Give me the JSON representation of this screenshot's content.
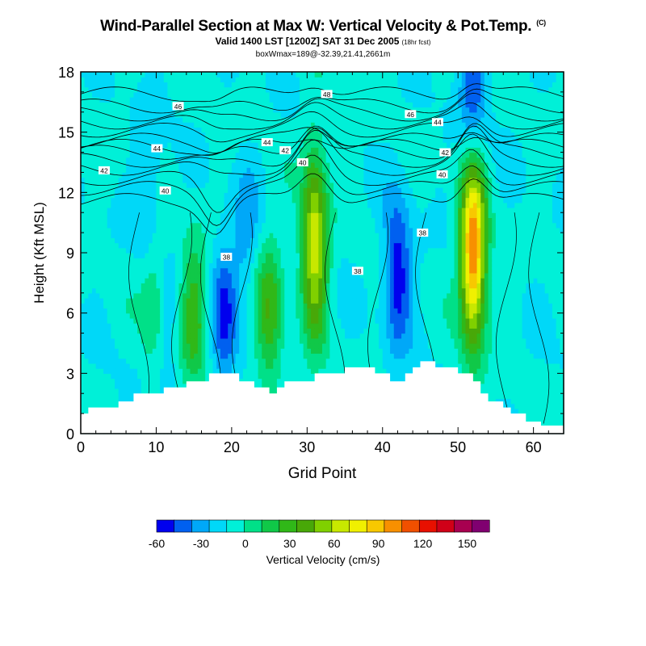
{
  "chart_data": {
    "type": "heatmap",
    "title": "Wind-Parallel Section at Max W: Vertical Velocity & Pot.Temp.",
    "title_tag": "(C)",
    "subtitle": "Valid 1400 LST [1200Z] SAT 31 Dec 2005",
    "forecast_tag": "(18hr fcst)",
    "box_info": "boxWmax=189@-32.39,21.41,2661m",
    "xlabel": "Grid Point",
    "ylabel": "Height (Kft MSL)",
    "xlim": [
      0,
      64
    ],
    "ylim": [
      0,
      18
    ],
    "x_ticks": [
      0,
      10,
      20,
      30,
      40,
      50,
      60
    ],
    "y_ticks": [
      0,
      3,
      6,
      9,
      12,
      15,
      18
    ],
    "colorbar": {
      "label": "Vertical Velocity (cm/s)",
      "tick_labels": [
        "-60",
        "-30",
        "0",
        "30",
        "60",
        "90",
        "120",
        "150"
      ],
      "tick_values": [
        -60,
        -30,
        0,
        30,
        60,
        90,
        120,
        150
      ],
      "range": [
        -60,
        165
      ],
      "step": 15,
      "colors": [
        "#0000ee",
        "#0060f0",
        "#00a8f8",
        "#00d8f8",
        "#00f0d8",
        "#00e088",
        "#10c848",
        "#30b818",
        "#48a808",
        "#80d000",
        "#c8e800",
        "#f0f000",
        "#f8c800",
        "#f89000",
        "#f05000",
        "#e81000",
        "#d00018",
        "#a80050",
        "#800070"
      ]
    },
    "terrain_height_kft": [
      1.0,
      1.3,
      1.3,
      1.3,
      1.3,
      1.6,
      1.6,
      2.0,
      2.0,
      2.0,
      2.0,
      2.3,
      2.3,
      2.3,
      2.6,
      2.6,
      2.6,
      3.0,
      3.0,
      3.0,
      3.0,
      2.6,
      2.6,
      2.3,
      2.3,
      2.0,
      2.3,
      2.6,
      2.6,
      2.6,
      2.6,
      3.0,
      3.0,
      3.0,
      3.0,
      3.3,
      3.3,
      3.3,
      3.3,
      3.0,
      3.0,
      2.6,
      2.6,
      3.0,
      3.3,
      3.6,
      3.6,
      3.3,
      3.3,
      3.3,
      3.0,
      3.0,
      2.6,
      2.0,
      1.6,
      1.6,
      1.3,
      1.0,
      1.0,
      0.6,
      0.6,
      0.4,
      0.4,
      0.4,
      0.4
    ],
    "updrafts": [
      {
        "x": 31,
        "z": 9.5,
        "w": 100
      },
      {
        "x": 52,
        "z": 9,
        "w": 150
      },
      {
        "x": 10,
        "z": 6.5,
        "w": 45
      },
      {
        "x": 15,
        "z": 6,
        "w": 50
      },
      {
        "x": 25,
        "z": 6,
        "w": 55
      }
    ],
    "downdrafts": [
      {
        "x": 42,
        "z": 8,
        "w": -60
      },
      {
        "x": 19,
        "z": 6,
        "w": -45
      },
      {
        "x": 11,
        "z": 5.5,
        "w": -30
      },
      {
        "x": 9,
        "z": 12,
        "w": -25
      },
      {
        "x": 22,
        "z": 10,
        "w": -25
      },
      {
        "x": 52,
        "z": 17,
        "w": -45
      }
    ],
    "isentrope_labels": [
      {
        "text": "46",
        "x": 12.9,
        "z": 16.3
      },
      {
        "text": "48",
        "x": 32.6,
        "z": 16.9
      },
      {
        "text": "46",
        "x": 43.7,
        "z": 15.9
      },
      {
        "text": "44",
        "x": 47.3,
        "z": 15.5
      },
      {
        "text": "44",
        "x": 10.1,
        "z": 14.2
      },
      {
        "text": "44",
        "x": 24.7,
        "z": 14.5
      },
      {
        "text": "42",
        "x": 27.1,
        "z": 14.1
      },
      {
        "text": "42",
        "x": 48.3,
        "z": 14.0
      },
      {
        "text": "40",
        "x": 29.4,
        "z": 13.5
      },
      {
        "text": "42",
        "x": 3.1,
        "z": 13.1
      },
      {
        "text": "40",
        "x": 47.9,
        "z": 12.9
      },
      {
        "text": "40",
        "x": 11.2,
        "z": 12.1
      },
      {
        "text": "38",
        "x": 19.3,
        "z": 8.8
      },
      {
        "text": "38",
        "x": 45.3,
        "z": 10.0
      },
      {
        "text": "38",
        "x": 36.7,
        "z": 8.1
      }
    ]
  }
}
